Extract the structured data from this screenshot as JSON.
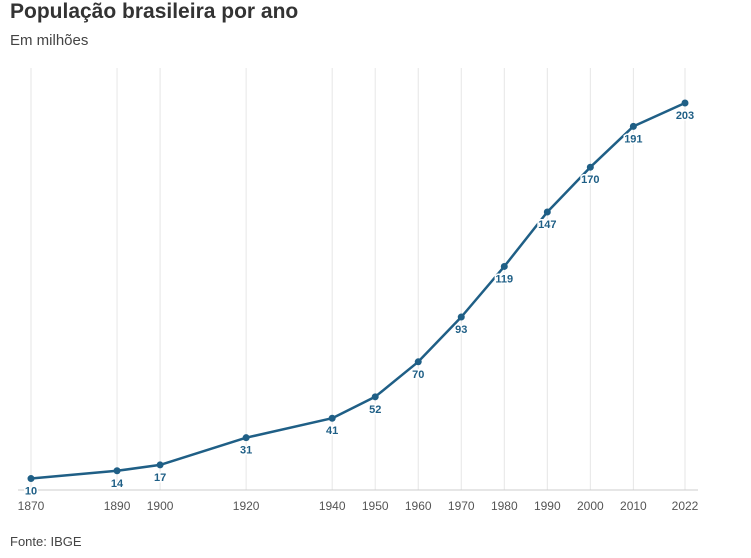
{
  "title": "População brasileira por ano",
  "subtitle": "Em milhões",
  "source": "Fonte: IBGE",
  "colors": {
    "line": "#1f5f86",
    "grid": "#e6e6e6",
    "axis": "#cccccc"
  },
  "chart_data": {
    "type": "line",
    "title": "População brasileira por ano",
    "subtitle": "Em milhões",
    "x": [
      1870,
      1890,
      1900,
      1920,
      1940,
      1950,
      1960,
      1970,
      1980,
      1990,
      2000,
      2010,
      2022
    ],
    "series": [
      {
        "values": [
          10,
          14,
          17,
          31,
          41,
          52,
          70,
          93,
          119,
          147,
          170,
          191,
          203
        ]
      }
    ],
    "xlim": [
      1870,
      2022
    ],
    "ylim": [
      0,
      210
    ],
    "grid": "vertical",
    "legend": "none",
    "data_labels": "below points"
  }
}
